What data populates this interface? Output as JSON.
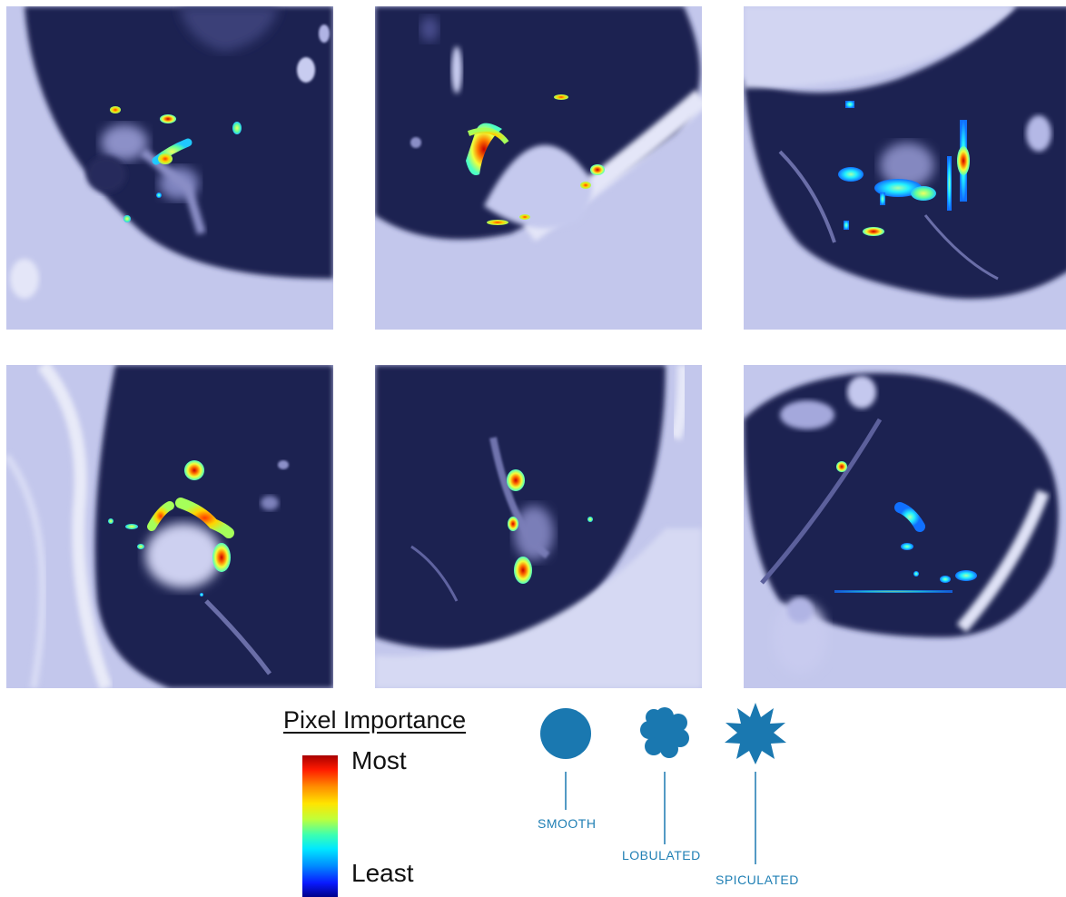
{
  "legend": {
    "title": "Pixel Importance",
    "most": "Most",
    "least": "Least"
  },
  "shapes": [
    {
      "id": "smooth",
      "label": "SMOOTH",
      "icon": "circle-icon"
    },
    {
      "id": "lobulated",
      "label": "LOBULATED",
      "icon": "lobulated-icon"
    },
    {
      "id": "spiculated",
      "label": "SPICULATED",
      "icon": "spiculated-icon"
    }
  ],
  "colors": {
    "lung_background": "#1d2152",
    "tissue": "#c5c9ee",
    "shape_blue": "#1a78b0"
  },
  "panels": [
    {
      "row": 1,
      "column": 1
    },
    {
      "row": 1,
      "column": 2
    },
    {
      "row": 1,
      "column": 3
    },
    {
      "row": 2,
      "column": 1
    },
    {
      "row": 2,
      "column": 2
    },
    {
      "row": 2,
      "column": 3
    }
  ]
}
